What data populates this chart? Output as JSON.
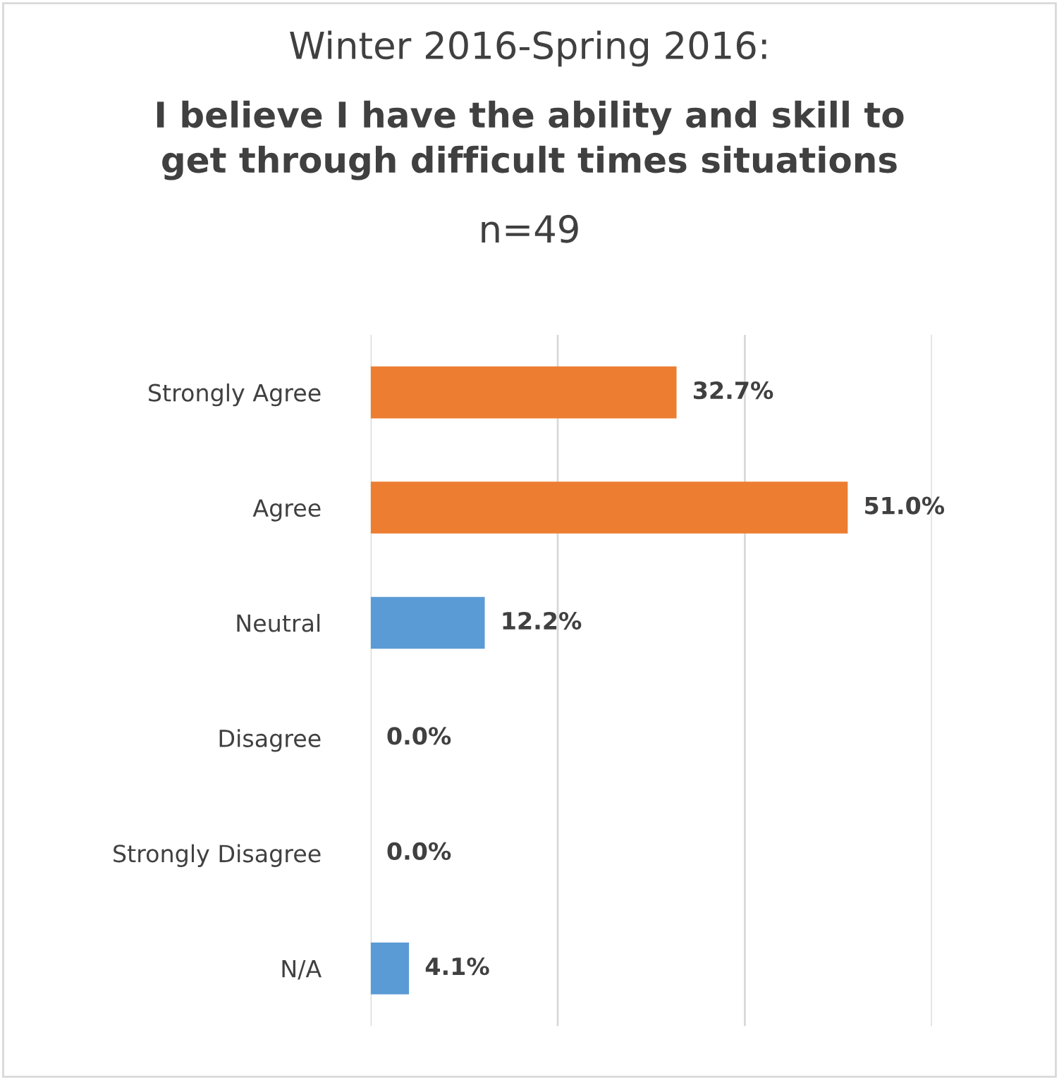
{
  "chart_data": {
    "type": "bar",
    "orientation": "horizontal",
    "title": "Winter 2016-Spring 2016:",
    "subtitle": "I believe I have the ability and skill to\nget through difficult times situations",
    "annotations": [
      "n=49"
    ],
    "categories": [
      "Strongly Agree",
      "Agree",
      "Neutral",
      "Disagree",
      "Strongly Disagree",
      "N/A"
    ],
    "values": [
      32.7,
      51.0,
      12.2,
      0.0,
      0.0,
      4.1
    ],
    "colors": [
      "#ed7d31",
      "#ed7d31",
      "#5b9bd5",
      "#5b9bd5",
      "#5b9bd5",
      "#5b9bd5"
    ],
    "value_labels": [
      "32.7%",
      "51.0%",
      "12.2%",
      "0.0%",
      "0.0%",
      "4.1%"
    ],
    "xlim": [
      0,
      60
    ],
    "xticks": [
      {
        "value": 0,
        "label": null
      },
      {
        "value": 20,
        "label": null
      },
      {
        "value": 40,
        "label": null
      },
      {
        "value": 60,
        "label": null
      }
    ],
    "grid": "x",
    "tick_labels": "y"
  }
}
